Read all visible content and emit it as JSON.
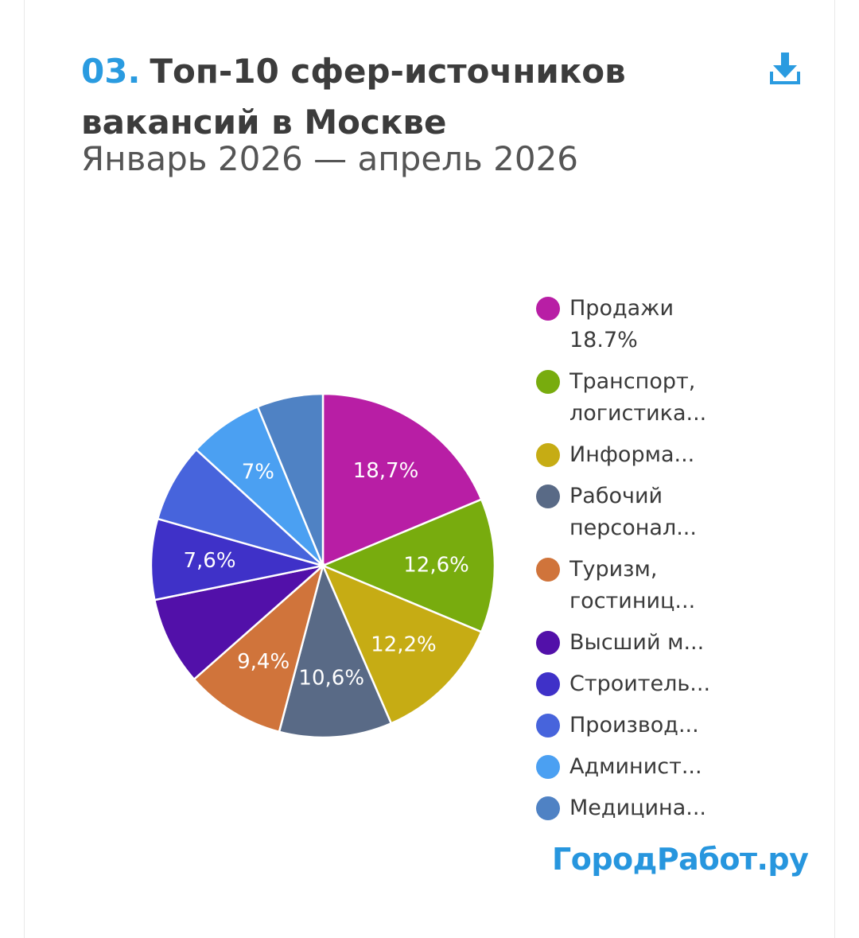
{
  "header": {
    "number": "03.",
    "title": "Топ-10 сфер-источников вакансий в Москве",
    "subtitle": "Январь 2026 — апрель 2026"
  },
  "icons": {
    "download": "download-icon"
  },
  "brand": {
    "text": "ГородРабот.ру"
  },
  "chart_data": {
    "type": "pie",
    "title": "Топ-10 сфер-источников вакансий в Москве",
    "subtitle": "Январь 2026 — апрель 2026",
    "legend_position": "right",
    "slices": [
      {
        "name": "Продажи",
        "value": 18.7,
        "label": "18,7%",
        "legend": "Продажи 18.7%",
        "legend_wrap": true,
        "color": "#b81ea5"
      },
      {
        "name": "Транспорт, логистика...",
        "value": 12.6,
        "label": "12,6%",
        "legend": "Транспорт, логистика...",
        "legend_wrap": true,
        "color": "#78ac0e"
      },
      {
        "name": "Информа...",
        "value": 12.2,
        "label": "12,2%",
        "legend": "Информа...",
        "legend_wrap": false,
        "color": "#c6ac14"
      },
      {
        "name": "Рабочий персонал...",
        "value": 10.6,
        "label": "10,6%",
        "legend": "Рабочий персонал...",
        "legend_wrap": true,
        "color": "#596a86"
      },
      {
        "name": "Туризм, гостиниц...",
        "value": 9.4,
        "label": "9,4%",
        "legend": "Туризм, гостиниц...",
        "legend_wrap": true,
        "color": "#d0743b"
      },
      {
        "name": "Высший м...",
        "value": 8.3,
        "label": "",
        "legend": "Высший м...",
        "legend_wrap": false,
        "color": "#5210a9"
      },
      {
        "name": "Строитель...",
        "value": 7.6,
        "label": "7,6%",
        "legend": "Строитель...",
        "legend_wrap": false,
        "color": "#3f31c8"
      },
      {
        "name": "Производ...",
        "value": 7.4,
        "label": "",
        "legend": "Производ...",
        "legend_wrap": false,
        "color": "#4764dc"
      },
      {
        "name": "Админист...",
        "value": 7.0,
        "label": "7%",
        "legend": "Админист...",
        "legend_wrap": false,
        "color": "#4ba0f2"
      },
      {
        "name": "Медицина...",
        "value": 6.2,
        "label": "",
        "legend": "Медицина...",
        "legend_wrap": false,
        "color": "#4f82c4"
      }
    ]
  }
}
